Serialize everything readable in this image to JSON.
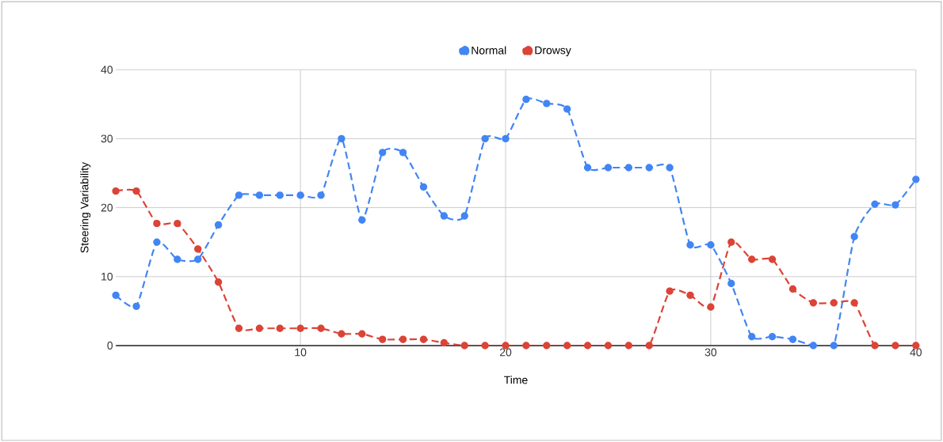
{
  "chart_data": {
    "type": "line",
    "xlabel": "Time",
    "ylabel": "Steering Variability",
    "x": [
      1,
      2,
      3,
      4,
      5,
      6,
      7,
      8,
      9,
      10,
      11,
      12,
      13,
      14,
      15,
      16,
      17,
      18,
      19,
      20,
      21,
      22,
      23,
      24,
      25,
      26,
      27,
      28,
      29,
      30,
      31,
      32,
      33,
      34,
      35,
      36,
      37,
      38,
      39,
      40
    ],
    "series": [
      {
        "name": "Normal",
        "color": "#4285f4",
        "values": [
          7.3,
          5.7,
          15,
          12.5,
          12.5,
          17.5,
          21.8,
          21.8,
          21.8,
          21.8,
          21.8,
          30,
          18.2,
          28,
          28,
          23,
          18.8,
          18.8,
          30,
          30,
          35.7,
          35.1,
          34.3,
          25.8,
          25.8,
          25.8,
          25.8,
          25.8,
          14.6,
          14.6,
          9,
          1.3,
          1.3,
          0.9,
          0,
          0,
          15.8,
          20.5,
          20.4,
          24.1
        ]
      },
      {
        "name": "Drowsy",
        "color": "#db4437",
        "values": [
          22.4,
          22.4,
          17.7,
          17.7,
          14,
          9.2,
          2.5,
          2.5,
          2.5,
          2.5,
          2.5,
          1.7,
          1.7,
          0.9,
          0.9,
          0.9,
          0.4,
          0,
          0,
          0,
          0,
          0,
          0,
          0,
          0,
          0,
          0,
          7.9,
          7.3,
          5.6,
          15,
          12.5,
          12.5,
          8.2,
          6.2,
          6.2,
          6.2,
          0,
          0,
          0
        ]
      }
    ],
    "xlim": [
      1,
      40
    ],
    "xticks": [
      10,
      20,
      30,
      40
    ],
    "ylim": [
      0,
      40
    ],
    "yticks": [
      0,
      10,
      20,
      30,
      40
    ],
    "grid": true,
    "legend": "top",
    "marker": "circle",
    "line_style": "dashed"
  }
}
